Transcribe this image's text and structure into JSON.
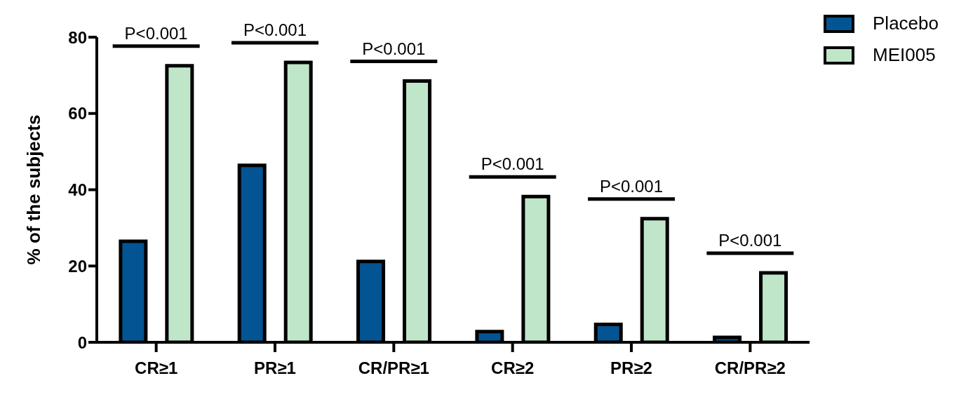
{
  "chart_data": {
    "type": "bar",
    "ylabel": "% of the subjects",
    "categories": [
      "CR≥1",
      "PR≥1",
      "CR/PR≥1",
      "CR≥2",
      "PR≥2",
      "CR/PR≥2"
    ],
    "series": [
      {
        "name": "Placebo",
        "color": "#035493",
        "values": [
          26.5,
          46.4,
          21.2,
          2.8,
          4.7,
          1.3
        ]
      },
      {
        "name": "MEI005",
        "color": "#bfe6c8",
        "values": [
          72.5,
          73.4,
          68.5,
          38.2,
          32.4,
          18.2
        ]
      }
    ],
    "ylim": [
      0,
      80
    ],
    "yticks": [
      0,
      20,
      40,
      60,
      80
    ],
    "grid": false,
    "legend": "top right",
    "annotations": [
      "P<0.001",
      "P<0.001",
      "P<0.001",
      "P<0.001",
      "P<0.001",
      "P<0.001"
    ]
  }
}
